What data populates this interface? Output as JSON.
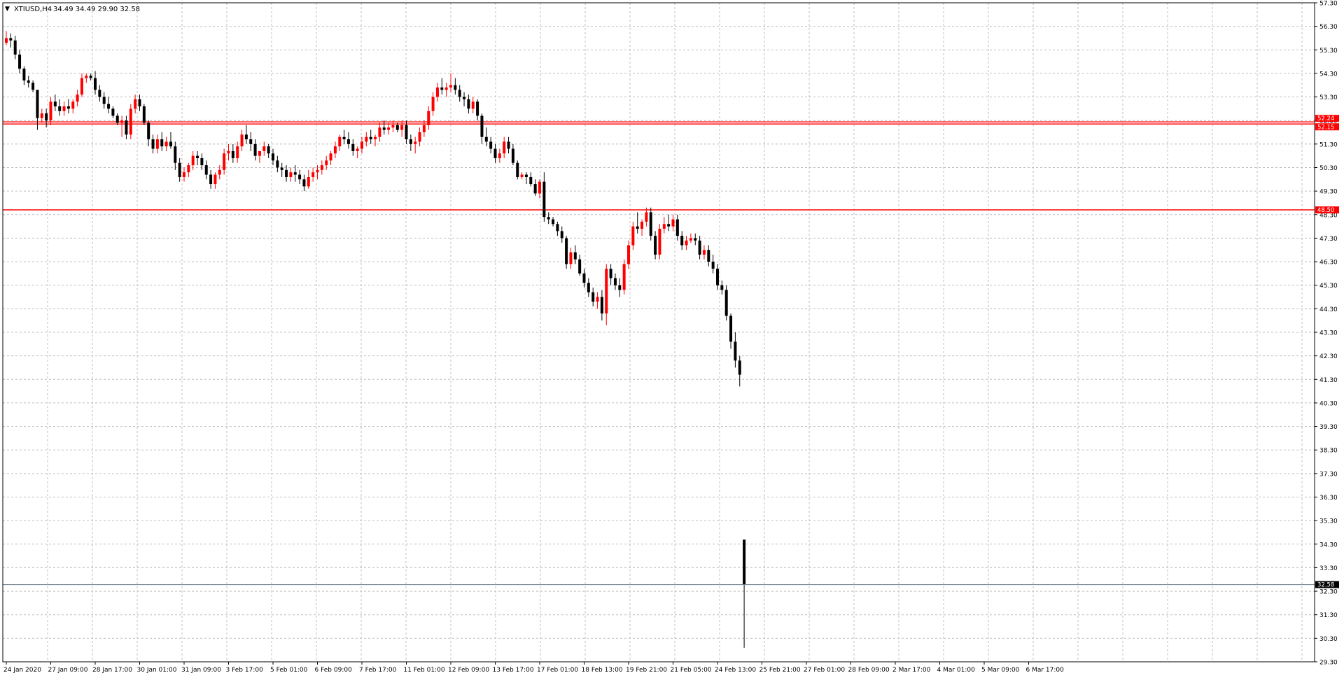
{
  "header": {
    "symbol": "XTIUSD,H4",
    "ohlc": "34.49 34.49 29.90 32.58"
  },
  "colors": {
    "background": "#ffffff",
    "grid": "#bfbfbf",
    "bear": "#000000",
    "bull": "#ff0000",
    "level_line": "#ff0000",
    "current_line": "#708090",
    "axis": "#000000"
  },
  "chart_data": {
    "type": "candlestick",
    "symbol": "XTIUSD",
    "timeframe": "H4",
    "ylim": [
      29.3,
      57.3
    ],
    "grid": true,
    "ytick_labels": [
      "29.30",
      "30.30",
      "31.30",
      "32.30",
      "33.30",
      "34.30",
      "35.30",
      "36.30",
      "37.30",
      "38.30",
      "39.30",
      "40.30",
      "41.30",
      "42.30",
      "43.30",
      "44.30",
      "45.30",
      "46.30",
      "47.30",
      "48.30",
      "49.30",
      "50.30",
      "51.30",
      "52.30",
      "53.30",
      "54.30",
      "55.30",
      "56.30",
      "57.30"
    ],
    "xtick_labels": [
      {
        "label": "24 Jan 2020",
        "index": 0
      },
      {
        "label": "27 Jan 09:00",
        "index": 10
      },
      {
        "label": "28 Jan 17:00",
        "index": 20
      },
      {
        "label": "30 Jan 01:00",
        "index": 30
      },
      {
        "label": "31 Jan 09:00",
        "index": 40
      },
      {
        "label": "3 Feb 17:00",
        "index": 50
      },
      {
        "label": "5 Feb 01:00",
        "index": 60
      },
      {
        "label": "6 Feb 09:00",
        "index": 70
      },
      {
        "label": "7 Feb 17:00",
        "index": 80
      },
      {
        "label": "11 Feb 01:00",
        "index": 90
      },
      {
        "label": "12 Feb 09:00",
        "index": 100
      },
      {
        "label": "13 Feb 17:00",
        "index": 110
      },
      {
        "label": "17 Feb 01:00",
        "index": 120
      },
      {
        "label": "18 Feb 13:00",
        "index": 130
      },
      {
        "label": "19 Feb 21:00",
        "index": 140
      },
      {
        "label": "21 Feb 05:00",
        "index": 150
      },
      {
        "label": "24 Feb 13:00",
        "index": 160
      },
      {
        "label": "25 Feb 21:00",
        "index": 170
      },
      {
        "label": "27 Feb 01:00",
        "index": 180
      },
      {
        "label": "28 Feb 09:00",
        "index": 190
      },
      {
        "label": "2 Mar 17:00",
        "index": 200
      },
      {
        "label": "4 Mar 01:00",
        "index": 210
      },
      {
        "label": "5 Mar 09:00",
        "index": 220
      },
      {
        "label": "6 Mar 17:00",
        "index": 230
      }
    ],
    "levels": [
      {
        "value": 52.24,
        "label": "52.24"
      },
      {
        "value": 52.15,
        "label": "52.15"
      },
      {
        "value": 48.5,
        "label": "48.50"
      }
    ],
    "current_price": {
      "value": 32.58,
      "label": "32.58"
    },
    "candles": [
      [
        55.6,
        56.1,
        55.5,
        55.8
      ],
      [
        55.8,
        56.0,
        55.4,
        55.7
      ],
      [
        55.7,
        55.9,
        54.9,
        55.1
      ],
      [
        55.1,
        55.3,
        54.3,
        54.5
      ],
      [
        54.5,
        54.6,
        53.8,
        54.0
      ],
      [
        54.0,
        54.2,
        53.7,
        53.9
      ],
      [
        53.9,
        54.0,
        53.5,
        53.6
      ],
      [
        53.6,
        53.6,
        51.9,
        52.4
      ],
      [
        52.4,
        52.8,
        52.2,
        52.6
      ],
      [
        52.6,
        52.8,
        52.0,
        52.3
      ],
      [
        52.3,
        53.3,
        52.1,
        53.1
      ],
      [
        53.1,
        53.4,
        52.7,
        52.9
      ],
      [
        52.9,
        53.2,
        52.5,
        52.7
      ],
      [
        52.7,
        53.1,
        52.5,
        52.9
      ],
      [
        52.9,
        53.2,
        52.6,
        52.8
      ],
      [
        52.8,
        53.2,
        52.6,
        53.1
      ],
      [
        53.1,
        53.6,
        52.9,
        53.4
      ],
      [
        53.4,
        54.3,
        53.3,
        54.1
      ],
      [
        54.1,
        54.3,
        53.9,
        54.2
      ],
      [
        54.2,
        54.3,
        54.0,
        54.1
      ],
      [
        54.1,
        54.4,
        53.4,
        53.6
      ],
      [
        53.6,
        53.8,
        53.1,
        53.3
      ],
      [
        53.3,
        53.5,
        52.8,
        53.0
      ],
      [
        53.0,
        53.3,
        52.6,
        52.8
      ],
      [
        52.8,
        52.9,
        52.4,
        52.5
      ],
      [
        52.5,
        52.6,
        52.1,
        52.2
      ],
      [
        52.2,
        52.5,
        51.6,
        52.3
      ],
      [
        52.3,
        52.5,
        51.5,
        51.7
      ],
      [
        51.7,
        53.0,
        51.5,
        52.8
      ],
      [
        52.8,
        53.4,
        52.6,
        53.2
      ],
      [
        53.2,
        53.4,
        52.7,
        52.9
      ],
      [
        52.9,
        53.0,
        52.1,
        52.2
      ],
      [
        52.2,
        52.3,
        51.2,
        51.5
      ],
      [
        51.5,
        51.7,
        50.9,
        51.1
      ],
      [
        51.1,
        51.7,
        50.9,
        51.5
      ],
      [
        51.5,
        51.8,
        51.0,
        51.2
      ],
      [
        51.2,
        51.6,
        51.0,
        51.4
      ],
      [
        51.4,
        51.8,
        51.1,
        51.2
      ],
      [
        51.2,
        51.4,
        50.2,
        50.5
      ],
      [
        50.5,
        50.7,
        49.7,
        49.9
      ],
      [
        49.9,
        50.3,
        49.7,
        50.1
      ],
      [
        50.1,
        50.5,
        49.9,
        50.4
      ],
      [
        50.4,
        51.0,
        50.2,
        50.8
      ],
      [
        50.8,
        51.0,
        50.4,
        50.7
      ],
      [
        50.7,
        50.9,
        50.2,
        50.4
      ],
      [
        50.4,
        50.6,
        49.8,
        50.0
      ],
      [
        50.0,
        50.2,
        49.4,
        49.6
      ],
      [
        49.6,
        50.1,
        49.4,
        50.0
      ],
      [
        50.0,
        50.4,
        49.8,
        50.2
      ],
      [
        50.2,
        51.1,
        50.0,
        50.9
      ],
      [
        50.9,
        51.3,
        50.6,
        51.0
      ],
      [
        51.0,
        51.3,
        50.5,
        50.7
      ],
      [
        50.7,
        51.4,
        50.5,
        51.2
      ],
      [
        51.2,
        51.9,
        51.0,
        51.7
      ],
      [
        51.7,
        52.1,
        51.3,
        51.5
      ],
      [
        51.5,
        51.8,
        51.0,
        51.3
      ],
      [
        51.3,
        51.5,
        50.6,
        50.8
      ],
      [
        50.8,
        51.0,
        50.5,
        51.0
      ],
      [
        51.0,
        51.4,
        50.8,
        51.2
      ],
      [
        51.2,
        51.3,
        50.7,
        50.9
      ],
      [
        50.9,
        51.1,
        50.4,
        50.6
      ],
      [
        50.6,
        50.8,
        50.1,
        50.3
      ],
      [
        50.3,
        50.5,
        49.9,
        50.2
      ],
      [
        50.2,
        50.4,
        49.7,
        49.9
      ],
      [
        49.9,
        50.3,
        49.7,
        50.1
      ],
      [
        50.1,
        50.4,
        49.7,
        50.0
      ],
      [
        50.0,
        50.2,
        49.6,
        49.8
      ],
      [
        49.8,
        50.0,
        49.3,
        49.5
      ],
      [
        49.5,
        50.2,
        49.4,
        49.9
      ],
      [
        49.9,
        50.3,
        49.7,
        50.1
      ],
      [
        50.1,
        50.4,
        49.8,
        50.2
      ],
      [
        50.2,
        50.6,
        50.0,
        50.4
      ],
      [
        50.4,
        50.8,
        50.2,
        50.6
      ],
      [
        50.6,
        51.0,
        50.4,
        50.9
      ],
      [
        50.9,
        51.4,
        50.7,
        51.2
      ],
      [
        51.2,
        51.7,
        51.0,
        51.6
      ],
      [
        51.6,
        51.9,
        51.3,
        51.5
      ],
      [
        51.5,
        51.8,
        51.1,
        51.3
      ],
      [
        51.3,
        51.5,
        50.8,
        51.0
      ],
      [
        51.0,
        51.2,
        50.7,
        51.1
      ],
      [
        51.1,
        51.6,
        50.9,
        51.4
      ],
      [
        51.4,
        51.8,
        51.2,
        51.6
      ],
      [
        51.6,
        51.9,
        51.3,
        51.5
      ],
      [
        51.5,
        51.7,
        51.2,
        51.6
      ],
      [
        51.6,
        52.2,
        51.4,
        52.0
      ],
      [
        52.0,
        52.3,
        51.7,
        51.9
      ],
      [
        51.9,
        52.2,
        51.7,
        52.0
      ],
      [
        52.0,
        52.3,
        51.8,
        52.1
      ],
      [
        52.1,
        52.2,
        51.8,
        51.9
      ],
      [
        51.9,
        52.3,
        51.6,
        52.1
      ],
      [
        52.1,
        52.3,
        51.3,
        51.5
      ],
      [
        51.5,
        51.7,
        51.0,
        51.3
      ],
      [
        51.3,
        51.6,
        50.9,
        51.4
      ],
      [
        51.4,
        52.0,
        51.2,
        51.8
      ],
      [
        51.8,
        52.3,
        51.6,
        52.1
      ],
      [
        52.1,
        52.9,
        51.9,
        52.7
      ],
      [
        52.7,
        53.5,
        52.5,
        53.3
      ],
      [
        53.3,
        53.9,
        53.1,
        53.7
      ],
      [
        53.7,
        54.1,
        53.4,
        53.6
      ],
      [
        53.6,
        53.9,
        53.3,
        53.7
      ],
      [
        53.7,
        54.3,
        53.5,
        53.8
      ],
      [
        53.8,
        54.1,
        53.4,
        53.6
      ],
      [
        53.6,
        53.8,
        53.1,
        53.3
      ],
      [
        53.3,
        53.5,
        52.9,
        53.2
      ],
      [
        53.2,
        53.4,
        52.6,
        52.8
      ],
      [
        52.8,
        53.3,
        52.6,
        53.1
      ],
      [
        53.1,
        53.2,
        52.3,
        52.5
      ],
      [
        52.5,
        52.6,
        51.3,
        51.6
      ],
      [
        51.6,
        52.0,
        51.2,
        51.4
      ],
      [
        51.4,
        51.6,
        50.9,
        51.1
      ],
      [
        51.1,
        51.3,
        50.5,
        50.7
      ],
      [
        50.7,
        51.1,
        50.5,
        50.9
      ],
      [
        50.9,
        51.6,
        50.7,
        51.4
      ],
      [
        51.4,
        51.6,
        50.9,
        51.1
      ],
      [
        51.1,
        51.3,
        50.4,
        50.5
      ],
      [
        50.5,
        50.6,
        49.8,
        49.9
      ],
      [
        49.9,
        50.1,
        49.8,
        50.0
      ],
      [
        50.0,
        50.1,
        49.6,
        49.9
      ],
      [
        49.9,
        50.1,
        49.5,
        49.6
      ],
      [
        49.6,
        49.8,
        49.1,
        49.2
      ],
      [
        49.2,
        49.8,
        49.0,
        49.7
      ],
      [
        49.7,
        50.1,
        48.0,
        48.2
      ],
      [
        48.2,
        48.4,
        47.9,
        48.1
      ],
      [
        48.1,
        48.2,
        47.8,
        47.9
      ],
      [
        47.9,
        48.0,
        47.4,
        47.6
      ],
      [
        47.6,
        47.8,
        47.1,
        47.3
      ],
      [
        47.3,
        47.4,
        46.0,
        46.2
      ],
      [
        46.2,
        46.9,
        46.0,
        46.7
      ],
      [
        46.7,
        47.0,
        46.2,
        46.4
      ],
      [
        46.4,
        46.6,
        45.7,
        45.8
      ],
      [
        45.8,
        46.0,
        45.2,
        45.4
      ],
      [
        45.4,
        45.6,
        44.8,
        45.0
      ],
      [
        45.0,
        45.2,
        44.4,
        44.6
      ],
      [
        44.6,
        45.0,
        44.3,
        44.8
      ],
      [
        44.8,
        45.1,
        43.8,
        44.1
      ],
      [
        44.1,
        46.2,
        43.6,
        46.0
      ],
      [
        46.0,
        46.2,
        45.3,
        45.6
      ],
      [
        45.6,
        45.8,
        45.1,
        45.3
      ],
      [
        45.3,
        45.6,
        44.8,
        45.1
      ],
      [
        45.1,
        46.4,
        44.9,
        46.2
      ],
      [
        46.2,
        47.2,
        46.0,
        47.0
      ],
      [
        47.0,
        48.0,
        46.8,
        47.8
      ],
      [
        47.8,
        48.4,
        47.5,
        47.7
      ],
      [
        47.7,
        48.1,
        47.4,
        48.0
      ],
      [
        48.0,
        48.6,
        47.8,
        48.4
      ],
      [
        48.4,
        48.6,
        47.2,
        47.4
      ],
      [
        47.4,
        47.6,
        46.4,
        46.6
      ],
      [
        46.6,
        47.9,
        46.4,
        47.7
      ],
      [
        47.7,
        48.2,
        47.5,
        47.9
      ],
      [
        47.9,
        48.3,
        47.6,
        47.8
      ],
      [
        47.8,
        48.3,
        47.6,
        48.1
      ],
      [
        48.1,
        48.3,
        47.2,
        47.4
      ],
      [
        47.4,
        47.6,
        46.8,
        47.0
      ],
      [
        47.0,
        47.4,
        46.8,
        47.2
      ],
      [
        47.2,
        47.5,
        47.1,
        47.3
      ],
      [
        47.3,
        47.5,
        47.0,
        47.2
      ],
      [
        47.2,
        47.4,
        46.4,
        46.6
      ],
      [
        46.6,
        47.0,
        46.4,
        46.8
      ],
      [
        46.8,
        47.0,
        46.1,
        46.3
      ],
      [
        46.3,
        46.6,
        45.8,
        46.0
      ],
      [
        46.0,
        46.2,
        45.1,
        45.3
      ],
      [
        45.3,
        45.5,
        44.9,
        45.1
      ],
      [
        45.1,
        45.3,
        43.8,
        44.0
      ],
      [
        44.0,
        44.1,
        42.6,
        42.9
      ],
      [
        42.9,
        43.3,
        41.8,
        42.1
      ],
      [
        42.1,
        42.3,
        41.0,
        41.5
      ],
      [
        34.49,
        34.49,
        29.9,
        32.58
      ]
    ]
  }
}
